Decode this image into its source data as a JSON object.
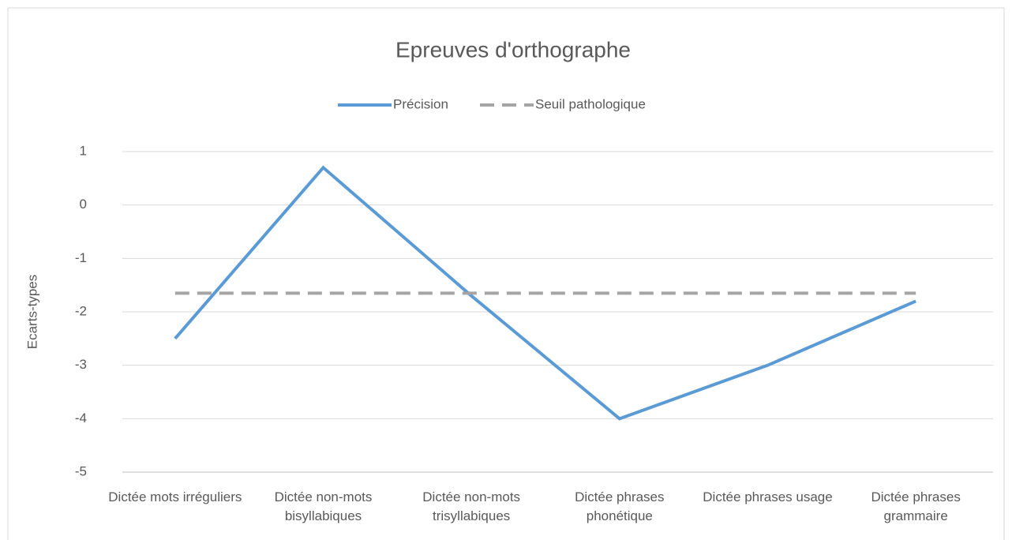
{
  "chart_data": {
    "type": "line",
    "title": "Epreuves d'orthographe",
    "y_label": "Ecarts-types",
    "categories": [
      "Dictée mots irréguliers",
      "Dictée non-mots bisyllabiques",
      "Dictée non-mots trisyllabiques",
      "Dictée phrases phonétique",
      "Dictée phrases usage",
      "Dictée phrases grammaire"
    ],
    "series": [
      {
        "name": "Précision",
        "color": "#5b9bd5",
        "dash": false,
        "values": [
          -2.5,
          0.7,
          -1.7,
          -4.0,
          -3.0,
          -1.8
        ]
      },
      {
        "name": "Seuil pathologique",
        "color": "#a5a5a5",
        "dash": true,
        "values": [
          -1.65,
          -1.65,
          -1.65,
          -1.65,
          -1.65,
          -1.65
        ]
      }
    ],
    "ylim": [
      -5,
      1
    ],
    "yticks": [
      -5,
      -4,
      -3,
      -2,
      -1,
      0,
      1
    ],
    "grid": true,
    "legend": "top"
  }
}
